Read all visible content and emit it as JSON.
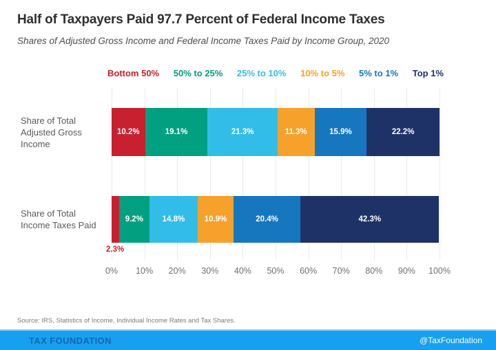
{
  "header": {
    "title": "Half of Taxpayers Paid 97.7 Percent of Federal Income Taxes",
    "subtitle": "Shares of Adjusted Gross Income and Federal Income Taxes Paid by Income Group, 2020"
  },
  "chart_data": {
    "type": "bar",
    "orientation": "horizontal",
    "stacked": true,
    "unit": "percent",
    "title": "Half of Taxpayers Paid 97.7 Percent of Federal Income Taxes",
    "subtitle": "Shares of Adjusted Gross Income and Federal Income Taxes Paid by Income Group, 2020",
    "categories": [
      "Share of Total Adjusted Gross Income",
      "Share of Total Income Taxes Paid"
    ],
    "series": [
      {
        "name": "Bottom 50%",
        "color": "#C8202F",
        "values": [
          10.2,
          2.3
        ]
      },
      {
        "name": "50% to 25%",
        "color": "#00A080",
        "values": [
          19.1,
          9.2
        ]
      },
      {
        "name": "25% to 10%",
        "color": "#32BDE8",
        "values": [
          21.3,
          14.8
        ]
      },
      {
        "name": "10% to 5%",
        "color": "#F5A12B",
        "values": [
          11.3,
          10.9
        ]
      },
      {
        "name": "5% to 1%",
        "color": "#1777BE",
        "values": [
          15.9,
          20.4
        ]
      },
      {
        "name": "Top 1%",
        "color": "#1F3268",
        "values": [
          22.2,
          42.3
        ]
      }
    ],
    "x_ticks": [
      "0%",
      "10%",
      "20%",
      "30%",
      "40%",
      "50%",
      "60%",
      "70%",
      "80%",
      "90%",
      "100%"
    ],
    "xlim": [
      0,
      100
    ],
    "legend_position": "top",
    "grid": "vertical-light"
  },
  "rows": [
    {
      "label_lines": [
        "Share of Total",
        "Adjusted Gross",
        "Income"
      ]
    },
    {
      "label_lines": [
        "Share of Total",
        "Income Taxes Paid"
      ]
    }
  ],
  "source": "Source: IRS, Statistics of Income, Individual Income Rates and Tax Shares.",
  "footer": {
    "brand": "TAX FOUNDATION",
    "handle": "@TaxFoundation",
    "bg_color": "#18A0F0",
    "brand_color": "#1565B0"
  }
}
